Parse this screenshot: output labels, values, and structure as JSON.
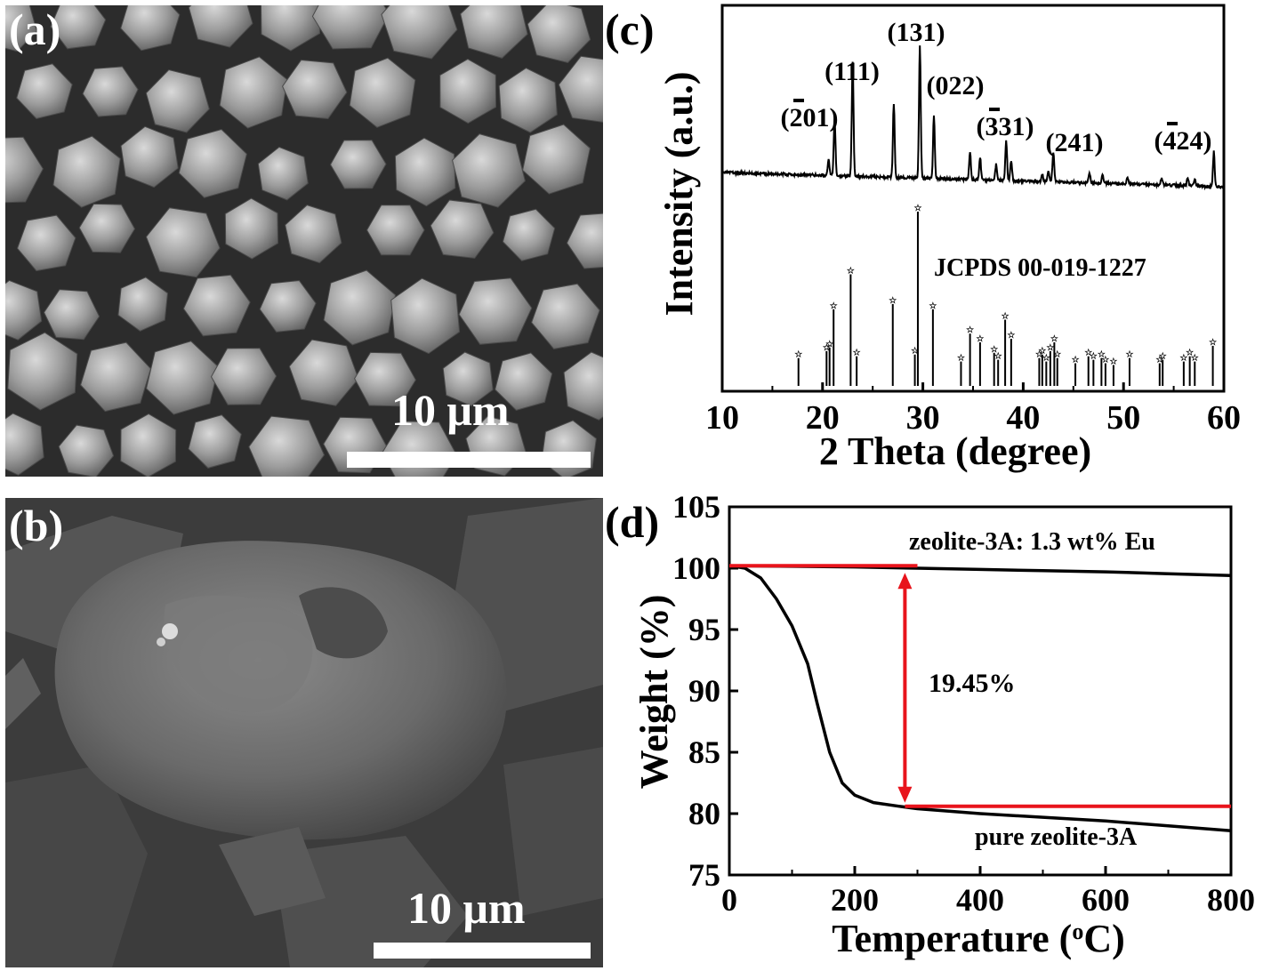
{
  "panels": {
    "a": {
      "label": "(a)",
      "scale_bar": "10 μm"
    },
    "b": {
      "label": "(b)",
      "scale_bar": "10 μm"
    },
    "c": {
      "label": "(c)"
    },
    "d": {
      "label": "(d)"
    }
  },
  "colors": {
    "curve": "#000000",
    "annotation": "#e8141c",
    "sem_bg": "#3b3b3b",
    "scale_bar": "#ffffff"
  },
  "chart_data": [
    {
      "id": "xrd",
      "type": "line",
      "xlabel": "2 Theta (degree)",
      "ylabel": "Intensity (a.u.)",
      "xlim": [
        10,
        60
      ],
      "xticks": [
        10,
        20,
        30,
        40,
        50,
        60
      ],
      "reference_label": "JCPDS 00-019-1227",
      "peak_labels": [
        {
          "text": "(201)",
          "bar": "-2",
          "x": 21.2
        },
        {
          "text": "(111)",
          "x": 23.0
        },
        {
          "text": "(131)",
          "x": 29.7
        },
        {
          "text": "(022)",
          "x": 31.1
        },
        {
          "text": "(331)",
          "bar": "-3",
          "x": 38.3
        },
        {
          "text": "(241)",
          "x": 43.0
        },
        {
          "text": "(424)",
          "bar": "-4",
          "x": 59.0
        }
      ],
      "measured_peaks": [
        {
          "x": 20.6,
          "h": 0.12
        },
        {
          "x": 21.2,
          "h": 0.42
        },
        {
          "x": 23.0,
          "h": 0.85
        },
        {
          "x": 27.1,
          "h": 0.55
        },
        {
          "x": 29.7,
          "h": 1.0
        },
        {
          "x": 31.1,
          "h": 0.47
        },
        {
          "x": 34.7,
          "h": 0.2
        },
        {
          "x": 35.7,
          "h": 0.17
        },
        {
          "x": 37.3,
          "h": 0.12
        },
        {
          "x": 38.3,
          "h": 0.3
        },
        {
          "x": 38.8,
          "h": 0.15
        },
        {
          "x": 41.9,
          "h": 0.06
        },
        {
          "x": 42.5,
          "h": 0.08
        },
        {
          "x": 43.0,
          "h": 0.22
        },
        {
          "x": 46.6,
          "h": 0.08
        },
        {
          "x": 47.9,
          "h": 0.06
        },
        {
          "x": 50.4,
          "h": 0.05
        },
        {
          "x": 53.8,
          "h": 0.05
        },
        {
          "x": 56.4,
          "h": 0.06
        },
        {
          "x": 57.1,
          "h": 0.05
        },
        {
          "x": 59.0,
          "h": 0.26
        }
      ],
      "reference_peaks": [
        {
          "x": 17.6,
          "h": 0.16
        },
        {
          "x": 20.4,
          "h": 0.2
        },
        {
          "x": 20.7,
          "h": 0.22
        },
        {
          "x": 21.1,
          "h": 0.44
        },
        {
          "x": 22.8,
          "h": 0.64
        },
        {
          "x": 23.4,
          "h": 0.17
        },
        {
          "x": 27.0,
          "h": 0.47
        },
        {
          "x": 29.2,
          "h": 0.18
        },
        {
          "x": 29.5,
          "h": 1.0
        },
        {
          "x": 31.0,
          "h": 0.44
        },
        {
          "x": 33.8,
          "h": 0.14
        },
        {
          "x": 34.7,
          "h": 0.3
        },
        {
          "x": 35.7,
          "h": 0.25
        },
        {
          "x": 37.1,
          "h": 0.19
        },
        {
          "x": 37.5,
          "h": 0.15
        },
        {
          "x": 38.2,
          "h": 0.38
        },
        {
          "x": 38.8,
          "h": 0.27
        },
        {
          "x": 41.6,
          "h": 0.16
        },
        {
          "x": 41.9,
          "h": 0.18
        },
        {
          "x": 42.3,
          "h": 0.14
        },
        {
          "x": 42.7,
          "h": 0.2
        },
        {
          "x": 43.1,
          "h": 0.25
        },
        {
          "x": 43.4,
          "h": 0.16
        },
        {
          "x": 45.2,
          "h": 0.13
        },
        {
          "x": 46.5,
          "h": 0.17
        },
        {
          "x": 47.0,
          "h": 0.15
        },
        {
          "x": 47.8,
          "h": 0.16
        },
        {
          "x": 48.2,
          "h": 0.13
        },
        {
          "x": 49.0,
          "h": 0.12
        },
        {
          "x": 50.6,
          "h": 0.16
        },
        {
          "x": 53.6,
          "h": 0.13
        },
        {
          "x": 53.9,
          "h": 0.15
        },
        {
          "x": 56.0,
          "h": 0.14
        },
        {
          "x": 56.6,
          "h": 0.17
        },
        {
          "x": 57.1,
          "h": 0.14
        },
        {
          "x": 58.9,
          "h": 0.23
        }
      ]
    },
    {
      "id": "tga",
      "type": "line",
      "xlabel": "Temperature (oC)",
      "ylabel": "Weight (%)",
      "xlim": [
        0,
        800
      ],
      "ylim": [
        75,
        105
      ],
      "xticks": [
        0,
        200,
        400,
        600,
        800
      ],
      "yticks": [
        75,
        80,
        85,
        90,
        95,
        100,
        105
      ],
      "series": [
        {
          "name": "zeolite-3A: 1.3 wt% Eu",
          "x": [
            0,
            100,
            200,
            300,
            400,
            500,
            600,
            700,
            800
          ],
          "y": [
            100.2,
            100.15,
            100.1,
            100.0,
            99.9,
            99.8,
            99.7,
            99.55,
            99.4
          ]
        },
        {
          "name": "pure zeolite-3A",
          "x": [
            0,
            25,
            50,
            75,
            100,
            125,
            140,
            160,
            180,
            200,
            230,
            270,
            300,
            400,
            500,
            600,
            700,
            800
          ],
          "y": [
            100.2,
            100.0,
            99.2,
            97.5,
            95.3,
            92.2,
            89.0,
            85.0,
            82.5,
            81.5,
            80.9,
            80.6,
            80.4,
            80.0,
            79.7,
            79.4,
            79.0,
            78.6
          ]
        }
      ],
      "annotation": {
        "text": "19.45%",
        "x": 280,
        "y_top": 100.2,
        "y_bottom": 80.6
      }
    }
  ]
}
